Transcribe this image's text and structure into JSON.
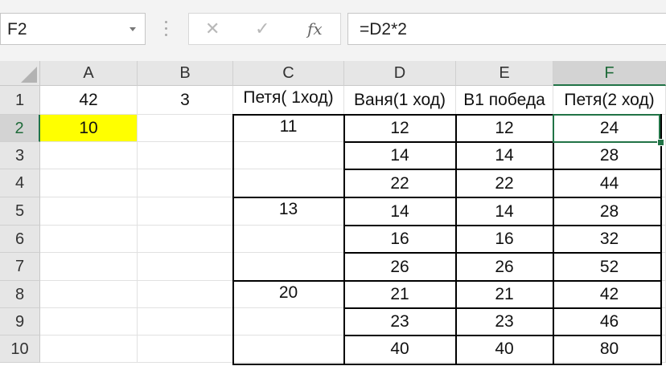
{
  "namebox": {
    "value": "F2"
  },
  "formula": {
    "value": "=D2*2",
    "cancel_icon": "✕",
    "enter_icon": "✓",
    "fx_label": "fx"
  },
  "columns": [
    "A",
    "B",
    "C",
    "D",
    "E",
    "F"
  ],
  "rows": [
    "1",
    "2",
    "3",
    "4",
    "5",
    "6",
    "7",
    "8",
    "9",
    "10"
  ],
  "selected": {
    "column": "F",
    "row": "2"
  },
  "cells": {
    "A1": "42",
    "B1": "3",
    "C1": "Петя( 1ход)",
    "D1": "Ваня(1 ход)",
    "E1": "В1 победа",
    "F1": "Петя(2 ход)",
    "A2": "10",
    "C2": "11",
    "D2": "12",
    "E2": "12",
    "F2": "24",
    "D3": "14",
    "E3": "14",
    "F3": "28",
    "D4": "22",
    "E4": "22",
    "F4": "44",
    "C5": "13",
    "D5": "14",
    "E5": "14",
    "F5": "28",
    "D6": "16",
    "E6": "16",
    "F6": "32",
    "D7": "26",
    "E7": "26",
    "F7": "52",
    "C8": "20",
    "D8": "21",
    "E8": "21",
    "F8": "42",
    "D9": "23",
    "E9": "23",
    "F9": "46",
    "D10": "40",
    "E10": "40",
    "F10": "80"
  },
  "colors": {
    "selection": "#217346",
    "highlight_A2": "#ffff00"
  }
}
